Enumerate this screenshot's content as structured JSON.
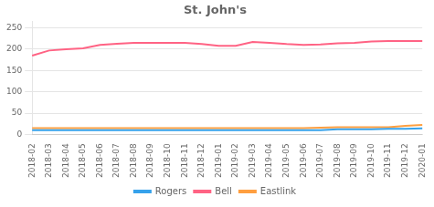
{
  "chart_data": {
    "type": "line",
    "title": "St. John's",
    "categories": [
      "2018-02",
      "2018-03",
      "2018-04",
      "2018-05",
      "2018-06",
      "2018-07",
      "2018-08",
      "2018-09",
      "2018-10",
      "2018-11",
      "2018-12",
      "2019-01",
      "2019-02",
      "2019-03",
      "2019-04",
      "2019-05",
      "2019-06",
      "2019-07",
      "2019-08",
      "2019-09",
      "2019-10",
      "2019-11",
      "2019-12",
      "2020-01"
    ],
    "series": [
      {
        "name": "Rogers",
        "values": [
          10,
          10,
          10,
          10,
          10,
          10,
          10,
          10,
          10,
          10,
          10,
          10,
          10,
          10,
          10,
          10,
          10,
          10,
          12,
          12,
          12,
          13,
          13,
          14
        ]
      },
      {
        "name": "Bell",
        "values": [
          185,
          197,
          200,
          202,
          210,
          213,
          215,
          215,
          215,
          215,
          212,
          208,
          208,
          217,
          215,
          212,
          210,
          211,
          214,
          215,
          218,
          219,
          219,
          219
        ]
      },
      {
        "name": "Eastlink",
        "values": [
          15,
          15,
          15,
          15,
          15,
          15,
          15,
          15,
          15,
          15,
          15,
          15,
          15,
          15,
          15,
          15,
          15,
          16,
          17,
          17,
          17,
          17,
          20,
          22
        ]
      }
    ],
    "ylim": [
      0,
      265
    ],
    "yticks": [
      0,
      50,
      100,
      150,
      200,
      250
    ],
    "grid": true,
    "legend": "bottom"
  }
}
